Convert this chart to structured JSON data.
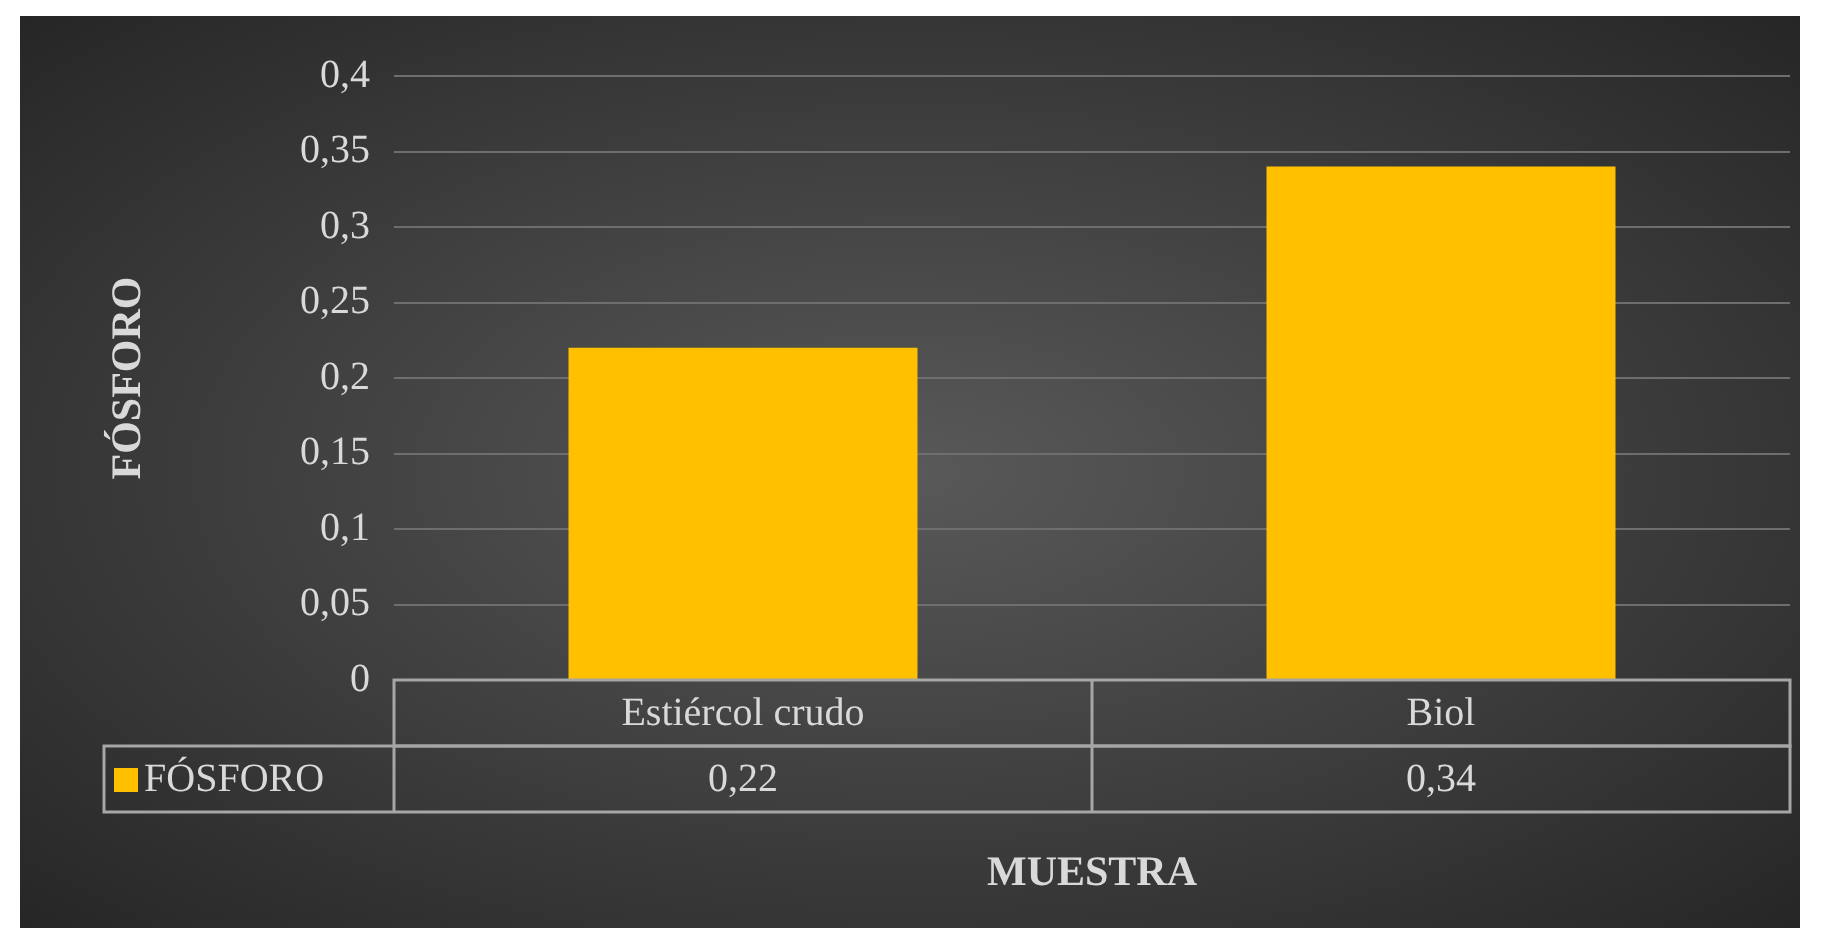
{
  "chart_data": {
    "type": "bar",
    "categories": [
      "Estiércol crudo",
      "Biol"
    ],
    "ylabel": "FÓSFORO",
    "xlabel": "MUESTRA",
    "series": [
      {
        "name": "FÓSFORO",
        "color": "#ffc000",
        "values": [
          0.22,
          0.34
        ],
        "value_labels": [
          "0,22",
          "0,34"
        ]
      }
    ],
    "ylim": [
      0,
      0.4
    ],
    "yticks": [
      {
        "value": 0,
        "label": "0"
      },
      {
        "value": 0.05,
        "label": "0,05"
      },
      {
        "value": 0.1,
        "label": "0,1"
      },
      {
        "value": 0.15,
        "label": "0,15"
      },
      {
        "value": 0.2,
        "label": "0,2"
      },
      {
        "value": 0.25,
        "label": "0,25"
      },
      {
        "value": 0.3,
        "label": "0,3"
      },
      {
        "value": 0.35,
        "label": "0,35"
      },
      {
        "value": 0.4,
        "label": "0,4"
      }
    ],
    "grid": "y",
    "legend": "bottom left"
  }
}
